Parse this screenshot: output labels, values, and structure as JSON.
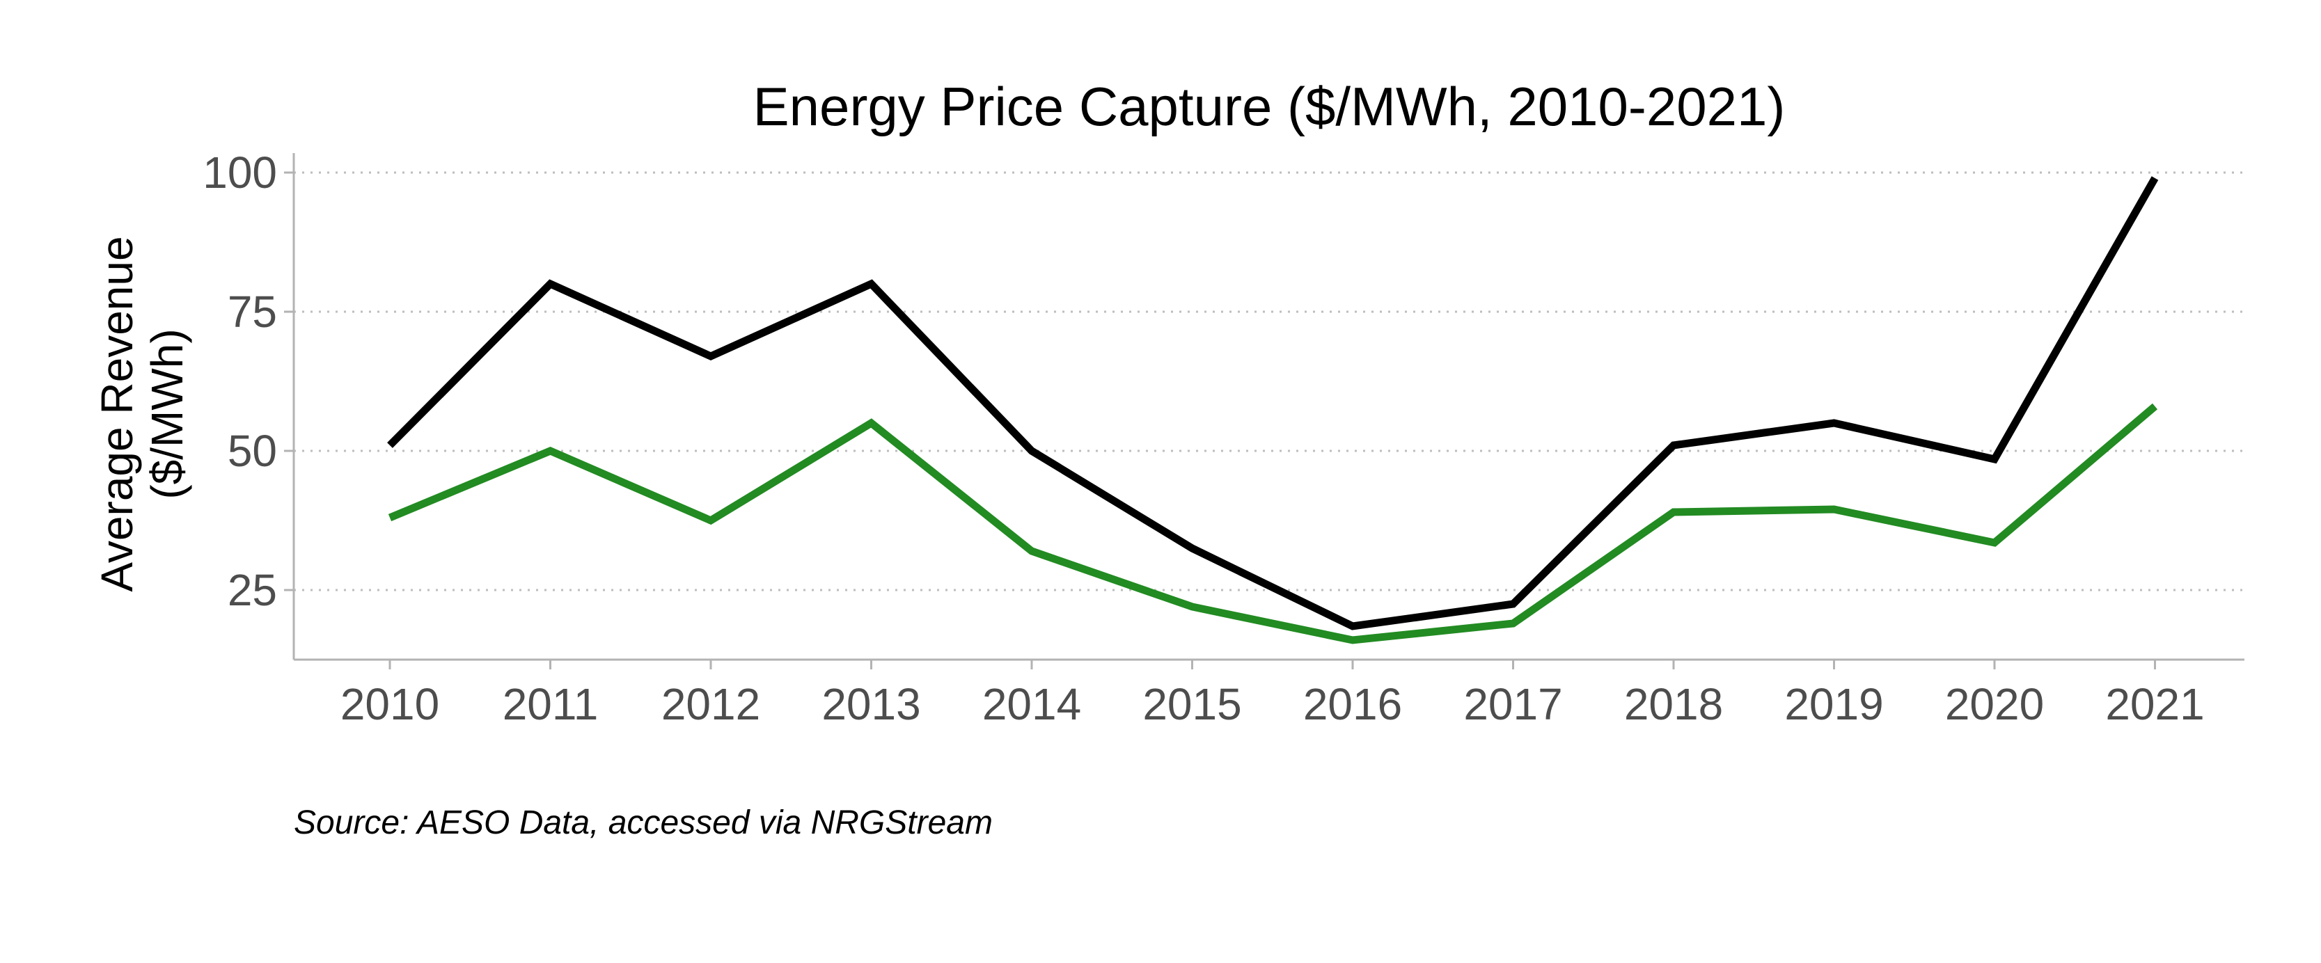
{
  "chart_data": {
    "type": "line",
    "title": "Energy Price Capture ($/MWh, 2010-2021)",
    "ylabel_lines": [
      "Average Revenue",
      "($/MWh)"
    ],
    "xlabel": "",
    "caption": "Source: AESO Data, accessed via NRGStream",
    "x": [
      "2010",
      "2011",
      "2012",
      "2013",
      "2014",
      "2015",
      "2016",
      "2017",
      "2018",
      "2019",
      "2020",
      "2021"
    ],
    "yticks": [
      25,
      50,
      75,
      100
    ],
    "ylim": [
      12.5,
      103.5
    ],
    "grid": "horizontal dotted",
    "legend": "none",
    "series": [
      {
        "color": "#000000",
        "values": [
          51,
          80,
          67,
          80,
          50,
          32.5,
          18.5,
          22.5,
          51,
          55,
          48.5,
          99
        ]
      },
      {
        "color": "#228b22",
        "values": [
          38,
          50,
          37.5,
          55,
          32,
          22,
          16,
          19,
          39,
          39.5,
          33.5,
          58
        ]
      }
    ]
  }
}
